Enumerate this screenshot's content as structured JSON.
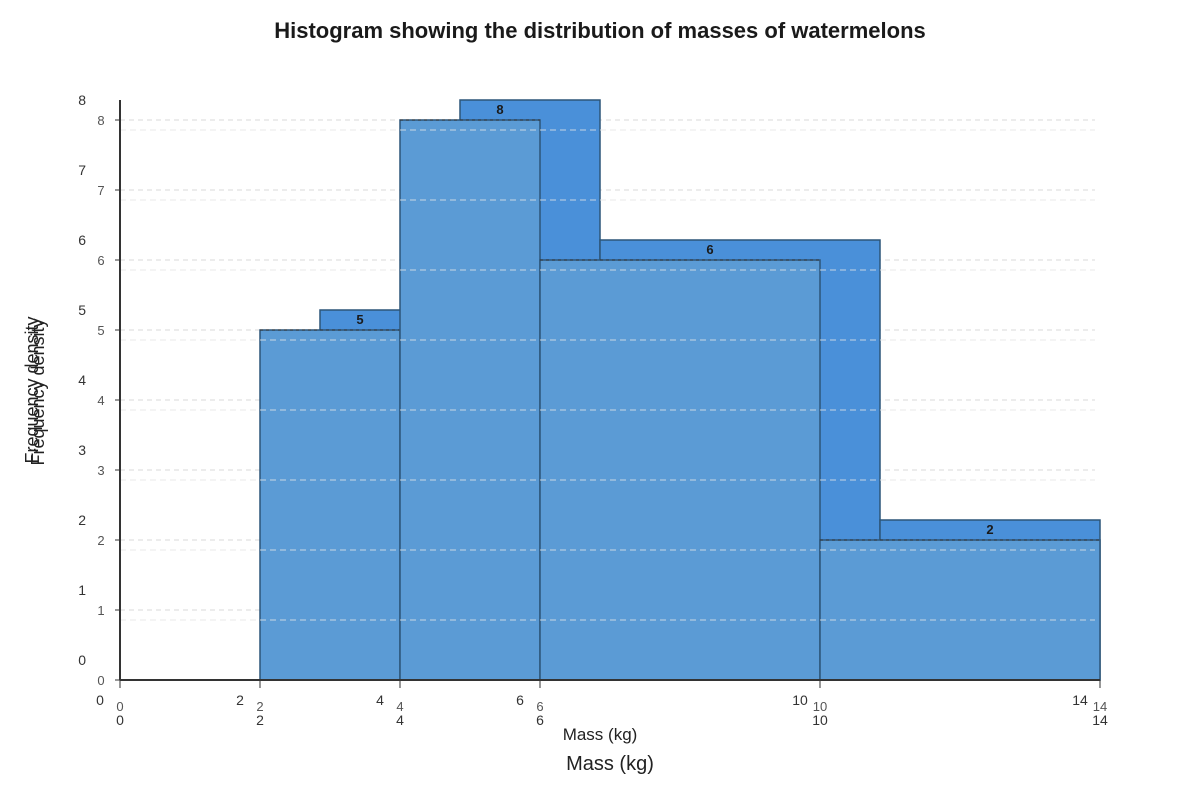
{
  "chart_data": {
    "type": "bar",
    "title": "Histogram showing the distribution of masses of watermelons",
    "xlabel": "Mass (kg)",
    "ylabel": "Frequency density",
    "xlim": [
      0,
      14
    ],
    "ylim": [
      0,
      8
    ],
    "x_ticks": [
      0,
      2,
      4,
      6,
      10,
      14
    ],
    "y_ticks": [
      0,
      1,
      2,
      3,
      4,
      5,
      6,
      7,
      8
    ],
    "grid": true,
    "bins": [
      {
        "x0": 2,
        "x1": 4,
        "value": 5
      },
      {
        "x0": 4,
        "x1": 6,
        "value": 8
      },
      {
        "x0": 6,
        "x1": 10,
        "value": 6
      },
      {
        "x0": 10,
        "x1": 14,
        "value": 2
      }
    ],
    "bar_color": "#5b9bd5",
    "shadow_color": "#4a90d9",
    "edge_color": "#2c5578"
  }
}
